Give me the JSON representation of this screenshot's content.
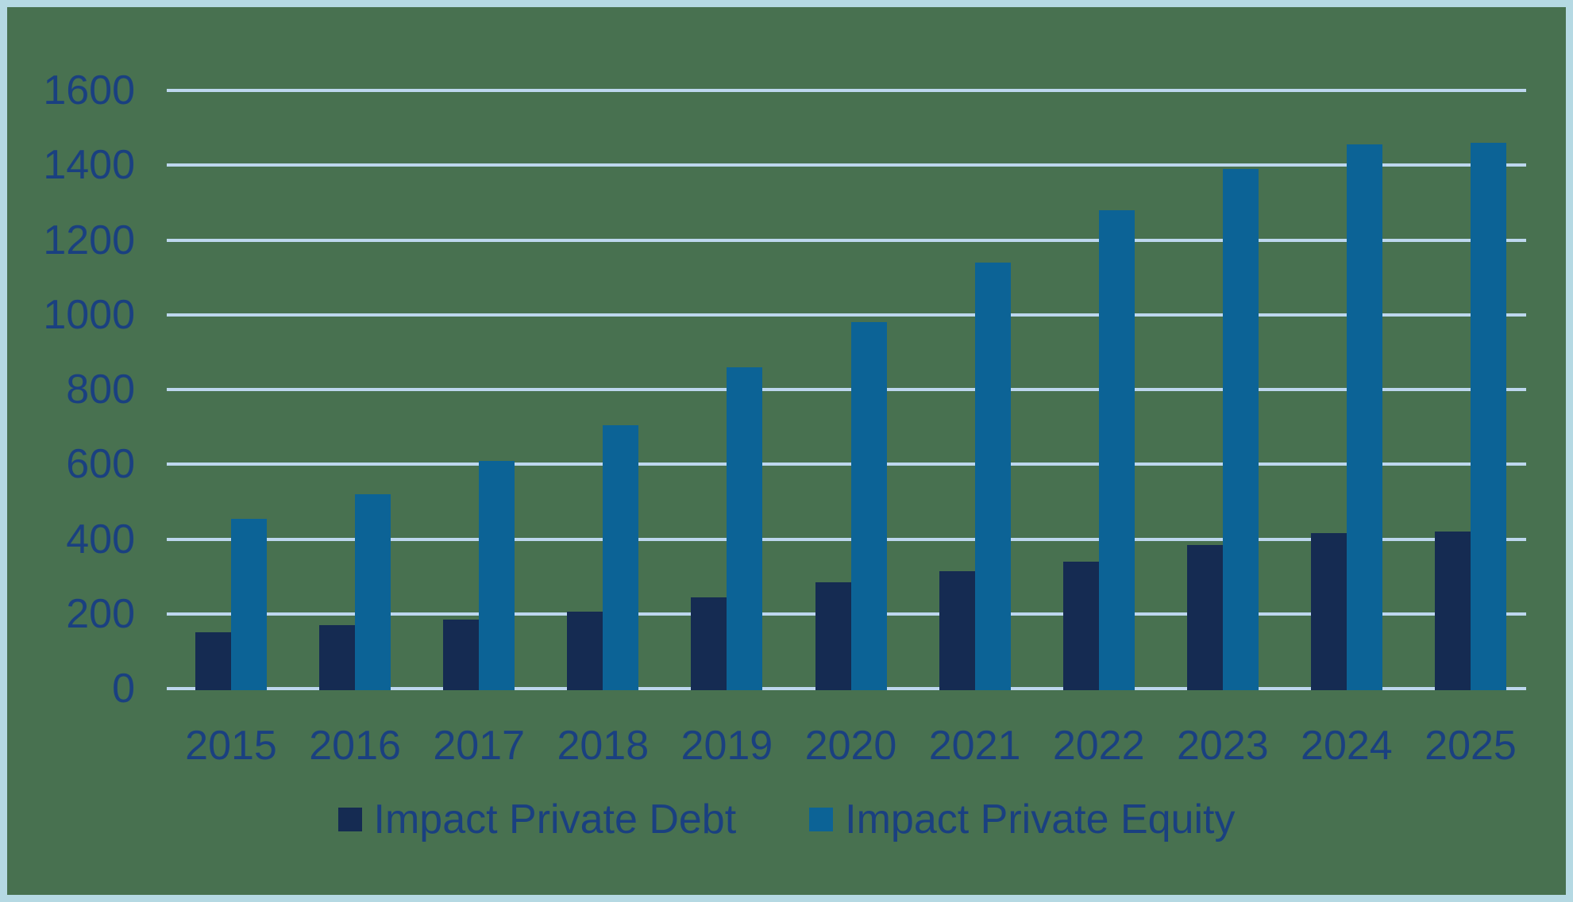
{
  "chart_data": {
    "type": "bar",
    "title": "",
    "xlabel": "",
    "ylabel": "",
    "categories": [
      "2015",
      "2016",
      "2017",
      "2018",
      "2019",
      "2020",
      "2021",
      "2022",
      "2023",
      "2024",
      "2025"
    ],
    "series": [
      {
        "name": "Impact Private Debt",
        "color": "#152B52",
        "values": [
          150,
          170,
          185,
          205,
          245,
          285,
          315,
          340,
          385,
          415,
          420
        ]
      },
      {
        "name": "Impact Private Equity",
        "color": "#0C6396",
        "values": [
          455,
          520,
          610,
          705,
          860,
          980,
          1140,
          1280,
          1390,
          1455,
          1460
        ]
      }
    ],
    "ylim": [
      0,
      1600
    ],
    "ytick_step": 200,
    "ytick_labels": [
      "0",
      "200",
      "400",
      "600",
      "800",
      "1000",
      "1200",
      "1400",
      "1600"
    ],
    "grid": true,
    "legend_position": "bottom",
    "style": {
      "background": "#487150",
      "frame_border": "#B5D9E3",
      "gridline": "#BDD7EE",
      "axis_text": "#1A4080"
    }
  }
}
